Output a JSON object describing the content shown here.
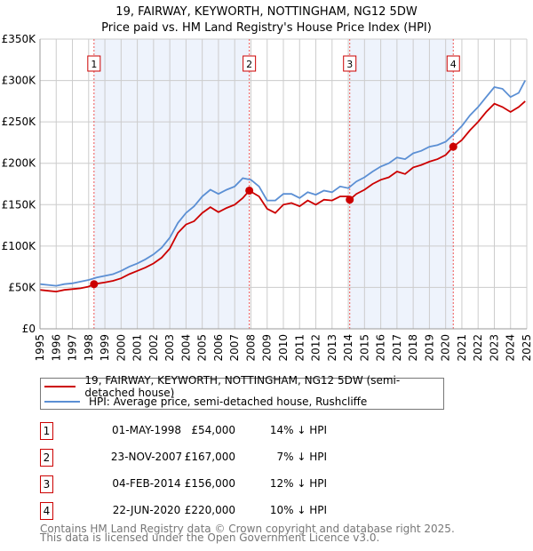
{
  "chart_data": {
    "type": "line",
    "title": "19, FAIRWAY, KEYWORTH, NOTTINGHAM, NG12 5DW",
    "subtitle": "Price paid vs. HM Land Registry's House Price Index (HPI)",
    "xlim": [
      1995,
      2025
    ],
    "ylim": [
      0,
      350000
    ],
    "x_ticks": [
      "1995",
      "1996",
      "1997",
      "1998",
      "1999",
      "2000",
      "2001",
      "2002",
      "2003",
      "2004",
      "2005",
      "2006",
      "2007",
      "2008",
      "2009",
      "2010",
      "2011",
      "2012",
      "2013",
      "2014",
      "2015",
      "2016",
      "2017",
      "2018",
      "2019",
      "2020",
      "2021",
      "2022",
      "2023",
      "2024",
      "2025"
    ],
    "y_ticks": [
      {
        "value": 0,
        "label": "£0"
      },
      {
        "value": 50000,
        "label": "£50K"
      },
      {
        "value": 100000,
        "label": "£100K"
      },
      {
        "value": 150000,
        "label": "£150K"
      },
      {
        "value": 200000,
        "label": "£200K"
      },
      {
        "value": 250000,
        "label": "£250K"
      },
      {
        "value": 300000,
        "label": "£300K"
      },
      {
        "value": 350000,
        "label": "£350K"
      }
    ],
    "grid": true,
    "colors": {
      "property": "#cc0000",
      "hpi": "#5b8fd4",
      "shade": "#eef3fc",
      "marker_line": "#ee5555"
    },
    "series": [
      {
        "name": "19, FAIRWAY, KEYWORTH, NOTTINGHAM, NG12 5DW (semi-detached house)",
        "key": "property",
        "x": [
          1995,
          1995.5,
          1996,
          1996.5,
          1997,
          1997.5,
          1998,
          1998.33,
          1998.5,
          1999,
          1999.5,
          2000,
          2000.5,
          2001,
          2001.5,
          2002,
          2002.5,
          2003,
          2003.5,
          2004,
          2004.5,
          2005,
          2005.5,
          2006,
          2006.5,
          2007,
          2007.5,
          2007.9,
          2008.5,
          2009,
          2009.5,
          2010,
          2010.5,
          2011,
          2011.5,
          2012,
          2012.5,
          2013,
          2013.5,
          2014,
          2014.09,
          2014.5,
          2015,
          2015.5,
          2016,
          2016.5,
          2017,
          2017.5,
          2018,
          2018.5,
          2019,
          2019.5,
          2020,
          2020.47,
          2021,
          2021.5,
          2022,
          2022.5,
          2023,
          2023.5,
          2024,
          2024.5,
          2024.9
        ],
        "y": [
          47000,
          46000,
          45000,
          47000,
          48000,
          49000,
          51000,
          54000,
          54500,
          56000,
          58000,
          61000,
          66000,
          70000,
          74000,
          79000,
          86000,
          97000,
          116000,
          126000,
          130000,
          140000,
          147000,
          141000,
          146000,
          150000,
          158000,
          167000,
          160000,
          145000,
          140000,
          150000,
          152000,
          148000,
          155000,
          150000,
          156000,
          155000,
          160000,
          160000,
          156000,
          163000,
          168000,
          175000,
          180000,
          183000,
          190000,
          187000,
          195000,
          198000,
          202000,
          205000,
          210000,
          220000,
          228000,
          240000,
          250000,
          262000,
          272000,
          268000,
          262000,
          268000,
          275000
        ]
      },
      {
        "name": "HPI: Average price, semi-detached house, Rushcliffe",
        "key": "hpi",
        "x": [
          1995,
          1995.5,
          1996,
          1996.5,
          1997,
          1997.5,
          1998,
          1998.5,
          1999,
          1999.5,
          2000,
          2000.5,
          2001,
          2001.5,
          2002,
          2002.5,
          2003,
          2003.5,
          2004,
          2004.5,
          2005,
          2005.5,
          2006,
          2006.5,
          2007,
          2007.5,
          2008,
          2008.5,
          2009,
          2009.5,
          2010,
          2010.5,
          2011,
          2011.5,
          2012,
          2012.5,
          2013,
          2013.5,
          2014,
          2014.5,
          2015,
          2015.5,
          2016,
          2016.5,
          2017,
          2017.5,
          2018,
          2018.5,
          2019,
          2019.5,
          2020,
          2020.5,
          2021,
          2021.5,
          2022,
          2022.5,
          2023,
          2023.5,
          2024,
          2024.5,
          2024.9
        ],
        "y": [
          54000,
          53000,
          52000,
          54000,
          55000,
          57000,
          59000,
          62000,
          64000,
          66000,
          70000,
          75000,
          79000,
          84000,
          90000,
          98000,
          110000,
          128000,
          140000,
          148000,
          160000,
          168000,
          163000,
          168000,
          172000,
          182000,
          180000,
          172000,
          155000,
          155000,
          163000,
          163000,
          158000,
          165000,
          162000,
          167000,
          165000,
          172000,
          170000,
          178000,
          183000,
          190000,
          196000,
          200000,
          207000,
          205000,
          212000,
          215000,
          220000,
          222000,
          226000,
          235000,
          245000,
          258000,
          268000,
          280000,
          292000,
          290000,
          280000,
          285000,
          300000
        ]
      }
    ],
    "sales": [
      {
        "label": "1",
        "x": 1998.33,
        "y": 54000
      },
      {
        "label": "2",
        "x": 2007.9,
        "y": 167000
      },
      {
        "label": "3",
        "x": 2014.09,
        "y": 156000
      },
      {
        "label": "4",
        "x": 2020.47,
        "y": 220000
      }
    ],
    "shaded_ranges": [
      [
        1998.33,
        2007.9
      ],
      [
        2014.09,
        2020.47
      ]
    ],
    "legend_placement": "below"
  },
  "legend": {
    "property": "19, FAIRWAY, KEYWORTH, NOTTINGHAM, NG12 5DW (semi-detached house)",
    "hpi": "HPI: Average price, semi-detached house, Rushcliffe"
  },
  "transactions": [
    {
      "num": "1",
      "date": "01-MAY-1998",
      "price": "£54,000",
      "hpi": "14% ↓ HPI"
    },
    {
      "num": "2",
      "date": "23-NOV-2007",
      "price": "£167,000",
      "hpi": "7% ↓ HPI"
    },
    {
      "num": "3",
      "date": "04-FEB-2014",
      "price": "£156,000",
      "hpi": "12% ↓ HPI"
    },
    {
      "num": "4",
      "date": "22-JUN-2020",
      "price": "£220,000",
      "hpi": "10% ↓ HPI"
    }
  ],
  "footer": {
    "line1": "Contains HM Land Registry data © Crown copyright and database right 2025.",
    "line2": "This data is licensed under the Open Government Licence v3.0."
  }
}
